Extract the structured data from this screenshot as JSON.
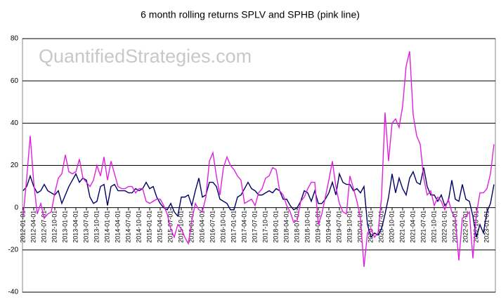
{
  "chart_data": {
    "type": "line",
    "title": "6 month rolling returns SPLV and SPHB (pink line)",
    "watermark": "QuantifiedStrategies.com",
    "categories": [
      "2012-01-01",
      null,
      null,
      "2012-04-01",
      null,
      null,
      "2012-07-01",
      null,
      null,
      "2012-10-01",
      null,
      null,
      "2013-01-01",
      null,
      null,
      "2013-04-01",
      null,
      null,
      "2013-07-01",
      null,
      null,
      "2013-10-01",
      null,
      null,
      "2014-01-01",
      null,
      null,
      "2014-04-01",
      null,
      null,
      "2014-07-01",
      null,
      null,
      "2014-10-01",
      null,
      null,
      "2015-01-01",
      null,
      null,
      "2015-04-01",
      null,
      null,
      "2015-07-01",
      null,
      null,
      "2015-10-01",
      null,
      null,
      "2016-01-01",
      null,
      null,
      "2016-04-01",
      null,
      null,
      "2016-07-01",
      null,
      null,
      "2016-10-01",
      null,
      null,
      "2017-01-01",
      null,
      null,
      "2017-04-01",
      null,
      null,
      "2017-07-01",
      null,
      null,
      "2017-10-01",
      null,
      null,
      "2018-01-01",
      null,
      null,
      "2018-04-01",
      null,
      null,
      "2018-07-01",
      null,
      null,
      "2018-10-01",
      null,
      null,
      "2019-01-01",
      null,
      null,
      "2019-04-01",
      null,
      null,
      "2019-07-01",
      null,
      null,
      "2019-10-01",
      null,
      null,
      "2020-01-01",
      null,
      null,
      "2020-04-01",
      null,
      null,
      "2020-07-01",
      null,
      null,
      "2020-10-01",
      null,
      null,
      "2021-01-01",
      null,
      null,
      "2021-04-01",
      null,
      null,
      "2021-07-01",
      null,
      null,
      "2021-10-01",
      null,
      null,
      "2022-01-01",
      null,
      null,
      "2022-04-01",
      null,
      null,
      "2022-07-01",
      null,
      null,
      "2022-10-01",
      null,
      null,
      "2023-01-01",
      null,
      null
    ],
    "series": [
      {
        "color": "#000066",
        "values": [
          8,
          10,
          15,
          10,
          7,
          8,
          11,
          8,
          7,
          6,
          8,
          2,
          6,
          10,
          13,
          16,
          12,
          14,
          13,
          5,
          2,
          3,
          10,
          11,
          1,
          10,
          11,
          8,
          8,
          8,
          7,
          7,
          9,
          8,
          9,
          12,
          9,
          10,
          5,
          2,
          0,
          -1,
          2,
          -2,
          -4,
          5,
          5,
          6,
          1,
          8,
          14,
          5,
          6,
          12,
          12,
          10,
          4,
          3,
          2,
          -1,
          -1,
          5,
          6,
          9,
          12,
          9,
          8,
          6,
          6,
          7,
          8,
          7,
          9,
          8,
          4,
          4,
          1,
          -1,
          0,
          3,
          8,
          7,
          3,
          8,
          2,
          2,
          4,
          7,
          12,
          6,
          16,
          12,
          11,
          11,
          8,
          9,
          7,
          10,
          -8,
          -14,
          -12,
          -13,
          -10,
          -3,
          5,
          16,
          7,
          14,
          9,
          6,
          14,
          17,
          12,
          11,
          19,
          10,
          6,
          6,
          3,
          6,
          1,
          3,
          13,
          4,
          3,
          11,
          4,
          3,
          -4,
          -14,
          -8,
          -12,
          -2,
          2,
          11
        ]
      },
      {
        "color": "#e020e0",
        "values": [
          -4,
          14,
          34,
          12,
          -3,
          2,
          -5,
          -3,
          -2,
          7,
          14,
          16,
          25,
          17,
          16,
          17,
          23,
          14,
          12,
          10,
          13,
          20,
          15,
          24,
          13,
          22,
          16,
          10,
          9,
          9,
          10,
          10,
          7,
          9,
          9,
          3,
          2,
          3,
          4,
          4,
          1,
          -3,
          -10,
          -14,
          -8,
          -10,
          -14,
          -17,
          -6,
          2,
          -1,
          -2,
          5,
          22,
          26,
          15,
          6,
          19,
          24,
          20,
          18,
          15,
          13,
          2,
          3,
          4,
          1,
          7,
          9,
          14,
          15,
          19,
          18,
          8,
          6,
          1,
          -2,
          -7,
          -6,
          3,
          5,
          9,
          12,
          12,
          -8,
          -3,
          5,
          13,
          22,
          10,
          2,
          -2,
          -3,
          15,
          9,
          3,
          -5,
          -28,
          -12,
          -10,
          -14,
          -12,
          5,
          45,
          22,
          40,
          42,
          38,
          48,
          67,
          74,
          44,
          34,
          30,
          14,
          6,
          8,
          1,
          5,
          3,
          -1,
          4,
          -2,
          -5,
          -25,
          -5,
          -4,
          -2,
          -24,
          -3,
          7,
          7,
          9,
          16,
          30
        ]
      }
    ],
    "ylim": [
      -40,
      80
    ],
    "yticks": [
      -40,
      -20,
      0,
      20,
      40,
      60,
      80
    ],
    "grid": true
  }
}
